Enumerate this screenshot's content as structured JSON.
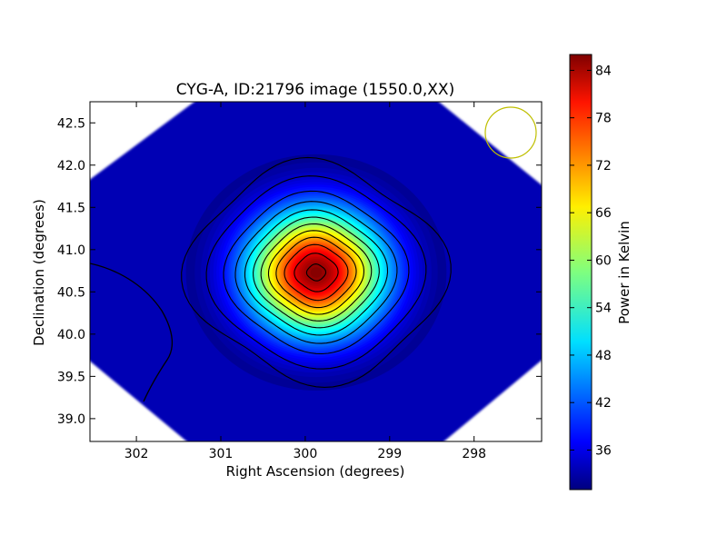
{
  "chart_data": {
    "type": "heatmap",
    "title": "CYG-A, ID:21796 image (1550.0,XX)",
    "xlabel": "Right Ascension (degrees)",
    "ylabel": "Declination (degrees)",
    "xlim": [
      302.55,
      297.2
    ],
    "ylim": [
      38.73,
      42.75
    ],
    "x_ticks": [
      302,
      301,
      300,
      299,
      298
    ],
    "x_tick_labels": [
      "302",
      "301",
      "300",
      "299",
      "298"
    ],
    "y_ticks": [
      39.0,
      39.5,
      40.0,
      40.5,
      41.0,
      41.5,
      42.0,
      42.5
    ],
    "y_tick_labels": [
      "39.0",
      "39.5",
      "40.0",
      "40.5",
      "41.0",
      "41.5",
      "42.0",
      "42.5"
    ],
    "colormap": "jet",
    "colorbar": {
      "label": "Power in Kelvin",
      "range": [
        31,
        86
      ],
      "ticks": [
        36,
        42,
        48,
        54,
        60,
        66,
        72,
        78,
        84
      ],
      "tick_labels": [
        "36",
        "42",
        "48",
        "54",
        "60",
        "66",
        "72",
        "78",
        "84"
      ]
    },
    "source": {
      "ra": 299.87,
      "dec": 40.73,
      "peak": 86,
      "background": 31
    },
    "contour_levels": [
      33,
      36,
      41,
      46,
      51,
      56,
      61,
      66,
      71,
      76,
      81,
      85
    ],
    "beam_marker": {
      "ra": 297.6,
      "dec": 42.36,
      "color": "#bfbf00"
    },
    "grid": false
  }
}
